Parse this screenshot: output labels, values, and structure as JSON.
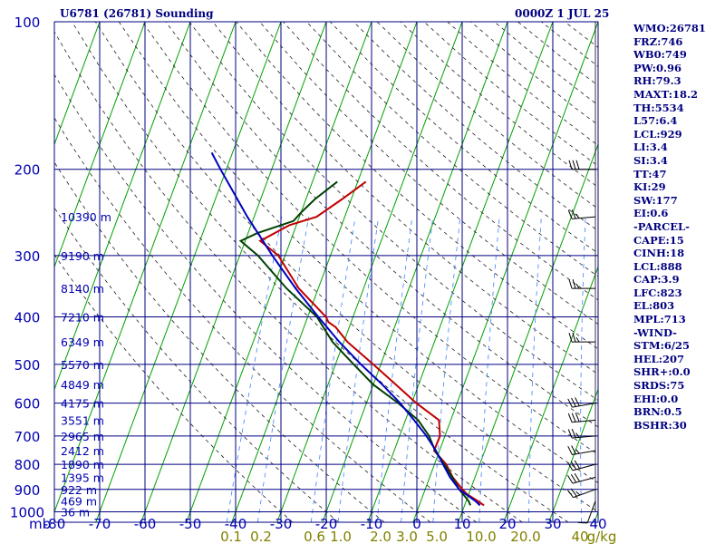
{
  "header": {
    "station": "U6781 (26781) Sounding",
    "time": "0000Z  1 JUL 25"
  },
  "indices": [
    "WMO:26781",
    "FRZ:746",
    "WB0:749",
    "PW:0.96",
    "RH:79.3",
    "MAXT:18.2",
    "TH:5534",
    "L57:6.4",
    "LCL:929",
    "LI:3.4",
    "SI:3.4",
    "TT:47",
    "KI:29",
    "SW:177",
    "EI:0.6",
    "-PARCEL-",
    "CAPE:15",
    "CINH:18",
    "LCL:888",
    "CAP:3.9",
    "LFC:823",
    "EL:803",
    "MPL:713",
    "-WIND-",
    "STM:6/25",
    "HEL:207",
    "SHR+:0.0",
    "SRDS:75",
    "EHI:0.0",
    "BRN:0.5",
    "BSHR:30"
  ],
  "chart_data": {
    "type": "line",
    "xlabel": "",
    "ylabel": "mb",
    "y_scale": "log",
    "ylim": [
      1000,
      100
    ],
    "xlim": [
      -80,
      40
    ],
    "pressure_ticks": [
      100,
      200,
      300,
      400,
      500,
      600,
      700,
      800,
      900,
      1000
    ],
    "temperature_ticks": [
      -80,
      -70,
      -60,
      -50,
      -40,
      -30,
      -20,
      -10,
      0,
      10,
      20,
      30,
      40
    ],
    "mixing_ratio_ticks": [
      "0.1",
      "0.2",
      "0.6",
      "1.0",
      "2.0",
      "3.0",
      "5.0",
      "10.0",
      "20.0",
      "40",
      "g/kg"
    ],
    "height_labels": [
      {
        "p": 250,
        "label": "10390 m"
      },
      {
        "p": 300,
        "label": "9190 m"
      },
      {
        "p": 350,
        "label": "8140 m"
      },
      {
        "p": 400,
        "label": "7210 m"
      },
      {
        "p": 450,
        "label": "6349 m"
      },
      {
        "p": 500,
        "label": "5570 m"
      },
      {
        "p": 550,
        "label": "4849 m"
      },
      {
        "p": 600,
        "label": "4175 m"
      },
      {
        "p": 650,
        "label": "3551 m"
      },
      {
        "p": 700,
        "label": "2965 m"
      },
      {
        "p": 750,
        "label": "2412 m"
      },
      {
        "p": 800,
        "label": "1890 m"
      },
      {
        "p": 850,
        "label": "1395 m"
      },
      {
        "p": 900,
        "label": "922 m"
      },
      {
        "p": 950,
        "label": "469 m"
      },
      {
        "p": 1000,
        "label": "36 m"
      }
    ],
    "series": [
      {
        "role": "temperature",
        "color": "#c00000",
        "points": [
          [
            970,
            14.3
          ],
          [
            950,
            12.5
          ],
          [
            920,
            9.6
          ],
          [
            900,
            8.2
          ],
          [
            850,
            5.1
          ],
          [
            800,
            2.6
          ],
          [
            750,
            -1.2
          ],
          [
            700,
            -1.1
          ],
          [
            650,
            -2.6
          ],
          [
            600,
            -9.0
          ],
          [
            550,
            -15.0
          ],
          [
            500,
            -21.7
          ],
          [
            450,
            -29.2
          ],
          [
            420,
            -33.0
          ],
          [
            410,
            -35.0
          ],
          [
            400,
            -36.0
          ],
          [
            350,
            -44.3
          ],
          [
            300,
            -51.5
          ],
          [
            280,
            -56.7
          ],
          [
            260,
            -51.5
          ],
          [
            250,
            -46.2
          ],
          [
            230,
            -42.0
          ],
          [
            212,
            -38.2
          ]
        ]
      },
      {
        "role": "dewpoint",
        "color": "#004000",
        "points": [
          [
            970,
            11.3
          ],
          [
            950,
            10.5
          ],
          [
            900,
            7.5
          ],
          [
            850,
            5.0
          ],
          [
            800,
            2.2
          ],
          [
            750,
            -1.0
          ],
          [
            700,
            -3.5
          ],
          [
            650,
            -7.2
          ],
          [
            600,
            -13.0
          ],
          [
            550,
            -20.0
          ],
          [
            500,
            -26.0
          ],
          [
            450,
            -32.5
          ],
          [
            400,
            -38.0
          ],
          [
            350,
            -47.0
          ],
          [
            300,
            -56.0
          ],
          [
            280,
            -61.0
          ],
          [
            270,
            -58.0
          ],
          [
            255,
            -51.0
          ],
          [
            245,
            -50.0
          ],
          [
            230,
            -48.0
          ],
          [
            212,
            -44.5
          ]
        ]
      },
      {
        "role": "parcel",
        "color": "#0000c0",
        "points": [
          [
            970,
            13.4
          ],
          [
            950,
            12.0
          ],
          [
            900,
            7.5
          ],
          [
            850,
            4.5
          ],
          [
            800,
            1.9
          ],
          [
            750,
            -0.8
          ],
          [
            700,
            -4.1
          ],
          [
            650,
            -8.1
          ],
          [
            600,
            -12.6
          ],
          [
            550,
            -18.0
          ],
          [
            500,
            -24.4
          ],
          [
            450,
            -31.0
          ],
          [
            400,
            -37.7
          ],
          [
            350,
            -45.0
          ],
          [
            300,
            -52.8
          ],
          [
            250,
            -61.5
          ],
          [
            200,
            -71.3
          ],
          [
            185,
            -74.6
          ]
        ]
      }
    ],
    "wind_barbs": [
      {
        "p": 950,
        "dir": 200,
        "speed": 10
      },
      {
        "p": 900,
        "dir": 250,
        "speed": 25
      },
      {
        "p": 850,
        "dir": 255,
        "speed": 30
      },
      {
        "p": 800,
        "dir": 255,
        "speed": 30
      },
      {
        "p": 750,
        "dir": 260,
        "speed": 25
      },
      {
        "p": 700,
        "dir": 265,
        "speed": 25
      },
      {
        "p": 650,
        "dir": 265,
        "speed": 30
      },
      {
        "p": 600,
        "dir": 260,
        "speed": 30
      },
      {
        "p": 450,
        "dir": 270,
        "speed": 25
      },
      {
        "p": 350,
        "dir": 270,
        "speed": 25
      },
      {
        "p": 250,
        "dir": 265,
        "speed": 25
      },
      {
        "p": 200,
        "dir": 270,
        "speed": 30
      }
    ],
    "colors": {
      "frame": "#000080",
      "text": "#0000b0",
      "isotherm": "#00a000",
      "dry_adiabat": "#202020",
      "mixing_ratio": "#4080ff",
      "mixing_ratio_text": "#808000"
    }
  }
}
